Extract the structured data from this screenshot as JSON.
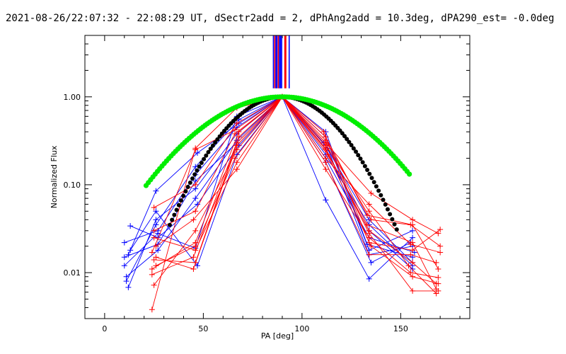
{
  "chart_data": {
    "type": "line",
    "title": "2021-08-26/22:07:32 - 22:08:29 UT, dSectr2add = 2, dPhAng2add = 10.3deg, dPA290_est= -0.0deg",
    "xlabel": "PA [deg]",
    "ylabel": "Normalized Flux",
    "xlim": [
      -10,
      185
    ],
    "ylim": [
      0.003,
      5.0
    ],
    "y_scale": "log",
    "x_ticks": [
      0,
      50,
      100,
      150
    ],
    "x_tick_labels": [
      "0",
      "50",
      "100",
      "150"
    ],
    "y_ticks": [
      0.01,
      0.1,
      1.0
    ],
    "y_tick_labels": [
      "0.01",
      "0.10",
      "1.00"
    ],
    "grid": false,
    "legend": "none",
    "peak": {
      "x": 90,
      "y": 1.0
    },
    "colors": {
      "red": "#ff0000",
      "blue": "#0000ff",
      "green": "#00ee00",
      "black": "#000000"
    },
    "vertical_lines": [
      {
        "x": 85.5,
        "color": "#0000ff"
      },
      {
        "x": 86.2,
        "color": "#ff0000"
      },
      {
        "x": 86.8,
        "color": "#0000ff"
      },
      {
        "x": 87.3,
        "color": "#0000ff"
      },
      {
        "x": 88.0,
        "color": "#ff0000"
      },
      {
        "x": 88.6,
        "color": "#0000ff"
      },
      {
        "x": 89.1,
        "color": "#0000ff"
      },
      {
        "x": 89.7,
        "color": "#0000ff"
      },
      {
        "x": 91.3,
        "color": "#ff0000"
      },
      {
        "x": 91.8,
        "color": "#ff0000"
      },
      {
        "x": 93.5,
        "color": "#0000ff"
      }
    ],
    "green_fit": {
      "name": "",
      "center": 90,
      "sigma": 32,
      "x_range": [
        21,
        155
      ],
      "color": "#00ee00"
    },
    "black_fit": {
      "name": "",
      "center": 90,
      "sigma": 22,
      "x_range": [
        33,
        149
      ],
      "color": "#000000"
    },
    "series": [
      {
        "color": "#0000ff",
        "points": [
          [
            10,
            0.022
          ],
          [
            27,
            0.03
          ],
          [
            46,
            0.13
          ],
          [
            67,
            0.45
          ],
          [
            90,
            1.0
          ],
          [
            112,
            0.25
          ],
          [
            134,
            0.03
          ],
          [
            156,
            0.011
          ]
        ]
      },
      {
        "color": "#0000ff",
        "points": [
          [
            11,
            0.008
          ],
          [
            26,
            0.035
          ],
          [
            46,
            0.16
          ],
          [
            68,
            0.55
          ],
          [
            90,
            1.0
          ],
          [
            112,
            0.35
          ],
          [
            134,
            0.018
          ],
          [
            156,
            0.03
          ]
        ]
      },
      {
        "color": "#0000ff",
        "points": [
          [
            12,
            0.016
          ],
          [
            26,
            0.085
          ],
          [
            47,
            0.23
          ],
          [
            68,
            0.5
          ],
          [
            90,
            1.0
          ],
          [
            112,
            0.067
          ],
          [
            134,
            0.0085
          ],
          [
            156,
            0.025
          ]
        ]
      },
      {
        "color": "#0000ff",
        "points": [
          [
            10,
            0.015
          ],
          [
            27,
            0.021
          ],
          [
            46,
            0.11
          ],
          [
            67,
            0.3
          ],
          [
            90,
            1.0
          ],
          [
            112,
            0.2
          ],
          [
            134,
            0.025
          ],
          [
            157,
            0.017
          ]
        ]
      },
      {
        "color": "#0000ff",
        "points": [
          [
            12,
            0.0068
          ],
          [
            26,
            0.04
          ],
          [
            46,
            0.09
          ],
          [
            67,
            0.38
          ],
          [
            90,
            1.0
          ],
          [
            111,
            0.3
          ],
          [
            134,
            0.04
          ],
          [
            156,
            0.013
          ]
        ]
      },
      {
        "color": "#0000ff",
        "points": [
          [
            13,
            0.034
          ],
          [
            27,
            0.025
          ],
          [
            47,
            0.06
          ],
          [
            68,
            0.28
          ],
          [
            90,
            1.0
          ],
          [
            112,
            0.4
          ],
          [
            133,
            0.021
          ],
          [
            156,
            0.015
          ]
        ]
      },
      {
        "color": "#0000ff",
        "points": [
          [
            11,
            0.009
          ],
          [
            27,
            0.018
          ],
          [
            46,
            0.07
          ],
          [
            67,
            0.32
          ],
          [
            90,
            1.0
          ],
          [
            112,
            0.18
          ],
          [
            135,
            0.013
          ],
          [
            155,
            0.022
          ]
        ]
      },
      {
        "color": "#0000ff",
        "points": [
          [
            13,
            0.018
          ],
          [
            26,
            0.05
          ],
          [
            47,
            0.012
          ],
          [
            67,
            0.22
          ],
          [
            90,
            1.0
          ],
          [
            113,
            0.26
          ],
          [
            134,
            0.016
          ],
          [
            156,
            0.02
          ]
        ]
      },
      {
        "color": "#0000ff",
        "points": [
          [
            10,
            0.012
          ],
          [
            27,
            0.028
          ],
          [
            46,
            0.019
          ],
          [
            67,
            0.6
          ],
          [
            90,
            1.0
          ],
          [
            112,
            0.22
          ],
          [
            134,
            0.035
          ],
          [
            156,
            0.012
          ]
        ]
      },
      {
        "color": "#ff0000",
        "points": [
          [
            24,
            0.0038
          ],
          [
            46,
            0.26
          ],
          [
            67,
            0.75
          ],
          [
            90,
            1.0
          ],
          [
            112,
            0.3
          ],
          [
            135,
            0.08
          ],
          [
            156,
            0.04
          ],
          [
            169,
            0.028
          ]
        ]
      },
      {
        "color": "#ff0000",
        "points": [
          [
            25,
            0.055
          ],
          [
            46,
            0.1
          ],
          [
            67,
            0.5
          ],
          [
            90,
            1.0
          ],
          [
            112,
            0.2
          ],
          [
            134,
            0.06
          ],
          [
            155,
            0.021
          ],
          [
            170,
            0.017
          ]
        ]
      },
      {
        "color": "#ff0000",
        "points": [
          [
            24,
            0.017
          ],
          [
            46,
            0.25
          ],
          [
            66,
            0.42
          ],
          [
            90,
            1.0
          ],
          [
            112,
            0.35
          ],
          [
            133,
            0.045
          ],
          [
            156,
            0.035
          ],
          [
            169,
            0.011
          ]
        ]
      },
      {
        "color": "#ff0000",
        "points": [
          [
            25,
            0.014
          ],
          [
            46,
            0.013
          ],
          [
            67,
            0.3
          ],
          [
            90,
            1.0
          ],
          [
            112,
            0.25
          ],
          [
            134,
            0.03
          ],
          [
            156,
            0.013
          ],
          [
            168,
            0.0075
          ]
        ]
      },
      {
        "color": "#ff0000",
        "points": [
          [
            24,
            0.0095
          ],
          [
            45,
            0.015
          ],
          [
            68,
            0.35
          ],
          [
            90,
            1.0
          ],
          [
            112,
            0.15
          ],
          [
            134,
            0.025
          ],
          [
            155,
            0.01
          ],
          [
            169,
            0.0088
          ]
        ]
      },
      {
        "color": "#ff0000",
        "points": [
          [
            26,
            0.012
          ],
          [
            46,
            0.02
          ],
          [
            66,
            0.2
          ],
          [
            90,
            1.0
          ],
          [
            111,
            0.4
          ],
          [
            134,
            0.022
          ],
          [
            156,
            0.018
          ],
          [
            170,
            0.031
          ]
        ]
      },
      {
        "color": "#ff0000",
        "points": [
          [
            25,
            0.0072
          ],
          [
            46,
            0.03
          ],
          [
            67,
            0.25
          ],
          [
            90,
            1.0
          ],
          [
            112,
            0.3
          ],
          [
            133,
            0.035
          ],
          [
            156,
            0.022
          ],
          [
            168,
            0.0065
          ]
        ]
      },
      {
        "color": "#ff0000",
        "points": [
          [
            26,
            0.02
          ],
          [
            45,
            0.04
          ],
          [
            67,
            0.15
          ],
          [
            90,
            1.0
          ],
          [
            112,
            0.28
          ],
          [
            134,
            0.05
          ],
          [
            154,
            0.012
          ],
          [
            168,
            0.0058
          ]
        ]
      },
      {
        "color": "#ff0000",
        "points": [
          [
            25,
            0.025
          ],
          [
            46,
            0.018
          ],
          [
            67,
            0.18
          ],
          [
            90,
            1.0
          ],
          [
            113,
            0.22
          ],
          [
            135,
            0.02
          ],
          [
            156,
            0.009
          ],
          [
            169,
            0.0075
          ]
        ]
      },
      {
        "color": "#ff0000",
        "points": [
          [
            24,
            0.011
          ],
          [
            46,
            0.022
          ],
          [
            68,
            0.4
          ],
          [
            90,
            1.0
          ],
          [
            112,
            0.18
          ],
          [
            134,
            0.016
          ],
          [
            155,
            0.016
          ],
          [
            168,
            0.013
          ]
        ]
      },
      {
        "color": "#ff0000",
        "points": [
          [
            26,
            0.015
          ],
          [
            45,
            0.011
          ],
          [
            67,
            0.28
          ],
          [
            90,
            1.0
          ],
          [
            112,
            0.26
          ],
          [
            134,
            0.028
          ],
          [
            156,
            0.0062
          ],
          [
            169,
            0.0062
          ]
        ]
      },
      {
        "color": "#ff0000",
        "points": [
          [
            25,
            0.03
          ],
          [
            46,
            0.05
          ],
          [
            66,
            0.38
          ],
          [
            90,
            1.0
          ],
          [
            112,
            0.32
          ],
          [
            135,
            0.04
          ],
          [
            155,
            0.035
          ],
          [
            170,
            0.02
          ]
        ]
      }
    ]
  }
}
